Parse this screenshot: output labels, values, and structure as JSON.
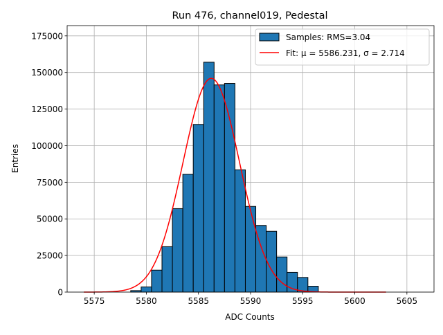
{
  "chart_data": {
    "type": "bar",
    "title": "Run 476, channel019, Pedestal",
    "xlabel": "ADC Counts",
    "ylabel": "Entries",
    "xlim": [
      5572.4,
      5607.6
    ],
    "ylim": [
      0,
      182000
    ],
    "grid": true,
    "legend_position": "top-right",
    "x_ticks": [
      5575,
      5580,
      5585,
      5590,
      5595,
      5600,
      5605
    ],
    "y_ticks": [
      0,
      25000,
      50000,
      75000,
      100000,
      125000,
      150000,
      175000
    ],
    "histogram": {
      "name": "Samples: RMS=3.04",
      "color": "#1f77b4",
      "edgecolor": "#000000",
      "bin_width": 1,
      "bin_centers": [
        5579,
        5580,
        5581,
        5582,
        5583,
        5584,
        5585,
        5586,
        5587,
        5588,
        5589,
        5590,
        5591,
        5592,
        5593,
        5594,
        5595,
        5596
      ],
      "counts": [
        1000,
        3500,
        15000,
        31000,
        57000,
        80500,
        114500,
        157000,
        141500,
        142500,
        83500,
        58500,
        45500,
        41500,
        24000,
        13500,
        10000,
        4000
      ]
    },
    "fit": {
      "name": "Fit: μ = 5586.231, σ = 2.714",
      "color": "#ff0000",
      "mu": 5586.231,
      "sigma": 2.714,
      "amplitude": 146000,
      "x_range": [
        5574,
        5603
      ]
    }
  }
}
